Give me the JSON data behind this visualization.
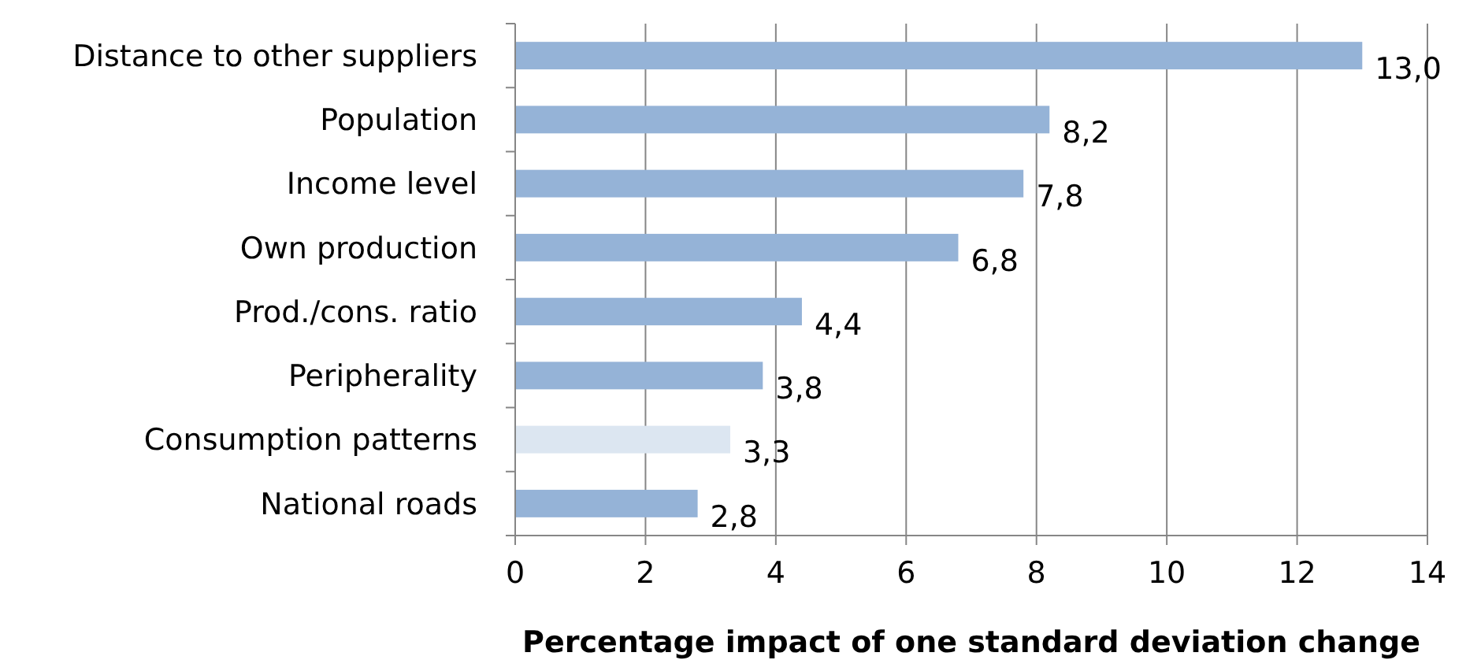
{
  "chart_data": {
    "type": "bar",
    "orientation": "horizontal",
    "xlabel": "Percentage impact of one standard deviation change",
    "categories": [
      "Distance to other suppliers",
      "Population",
      "Income level",
      "Own production",
      "Prod./cons. ratio",
      "Peripherality",
      "Consumption patterns",
      "National roads"
    ],
    "values": [
      13.0,
      8.2,
      7.8,
      6.8,
      4.4,
      3.8,
      3.3,
      2.8
    ],
    "value_labels": [
      "13,0",
      "8,2",
      "7,8",
      "6,8",
      "4,4",
      "3,8",
      "3,3",
      "2,8"
    ],
    "colors": [
      "#95b3d7",
      "#95b3d7",
      "#95b3d7",
      "#95b3d7",
      "#95b3d7",
      "#95b3d7",
      "#dce6f1",
      "#95b3d7"
    ],
    "xlim": [
      0,
      14
    ],
    "xticks": [
      0,
      2,
      4,
      6,
      8,
      10,
      12,
      14
    ],
    "grid": "x"
  }
}
